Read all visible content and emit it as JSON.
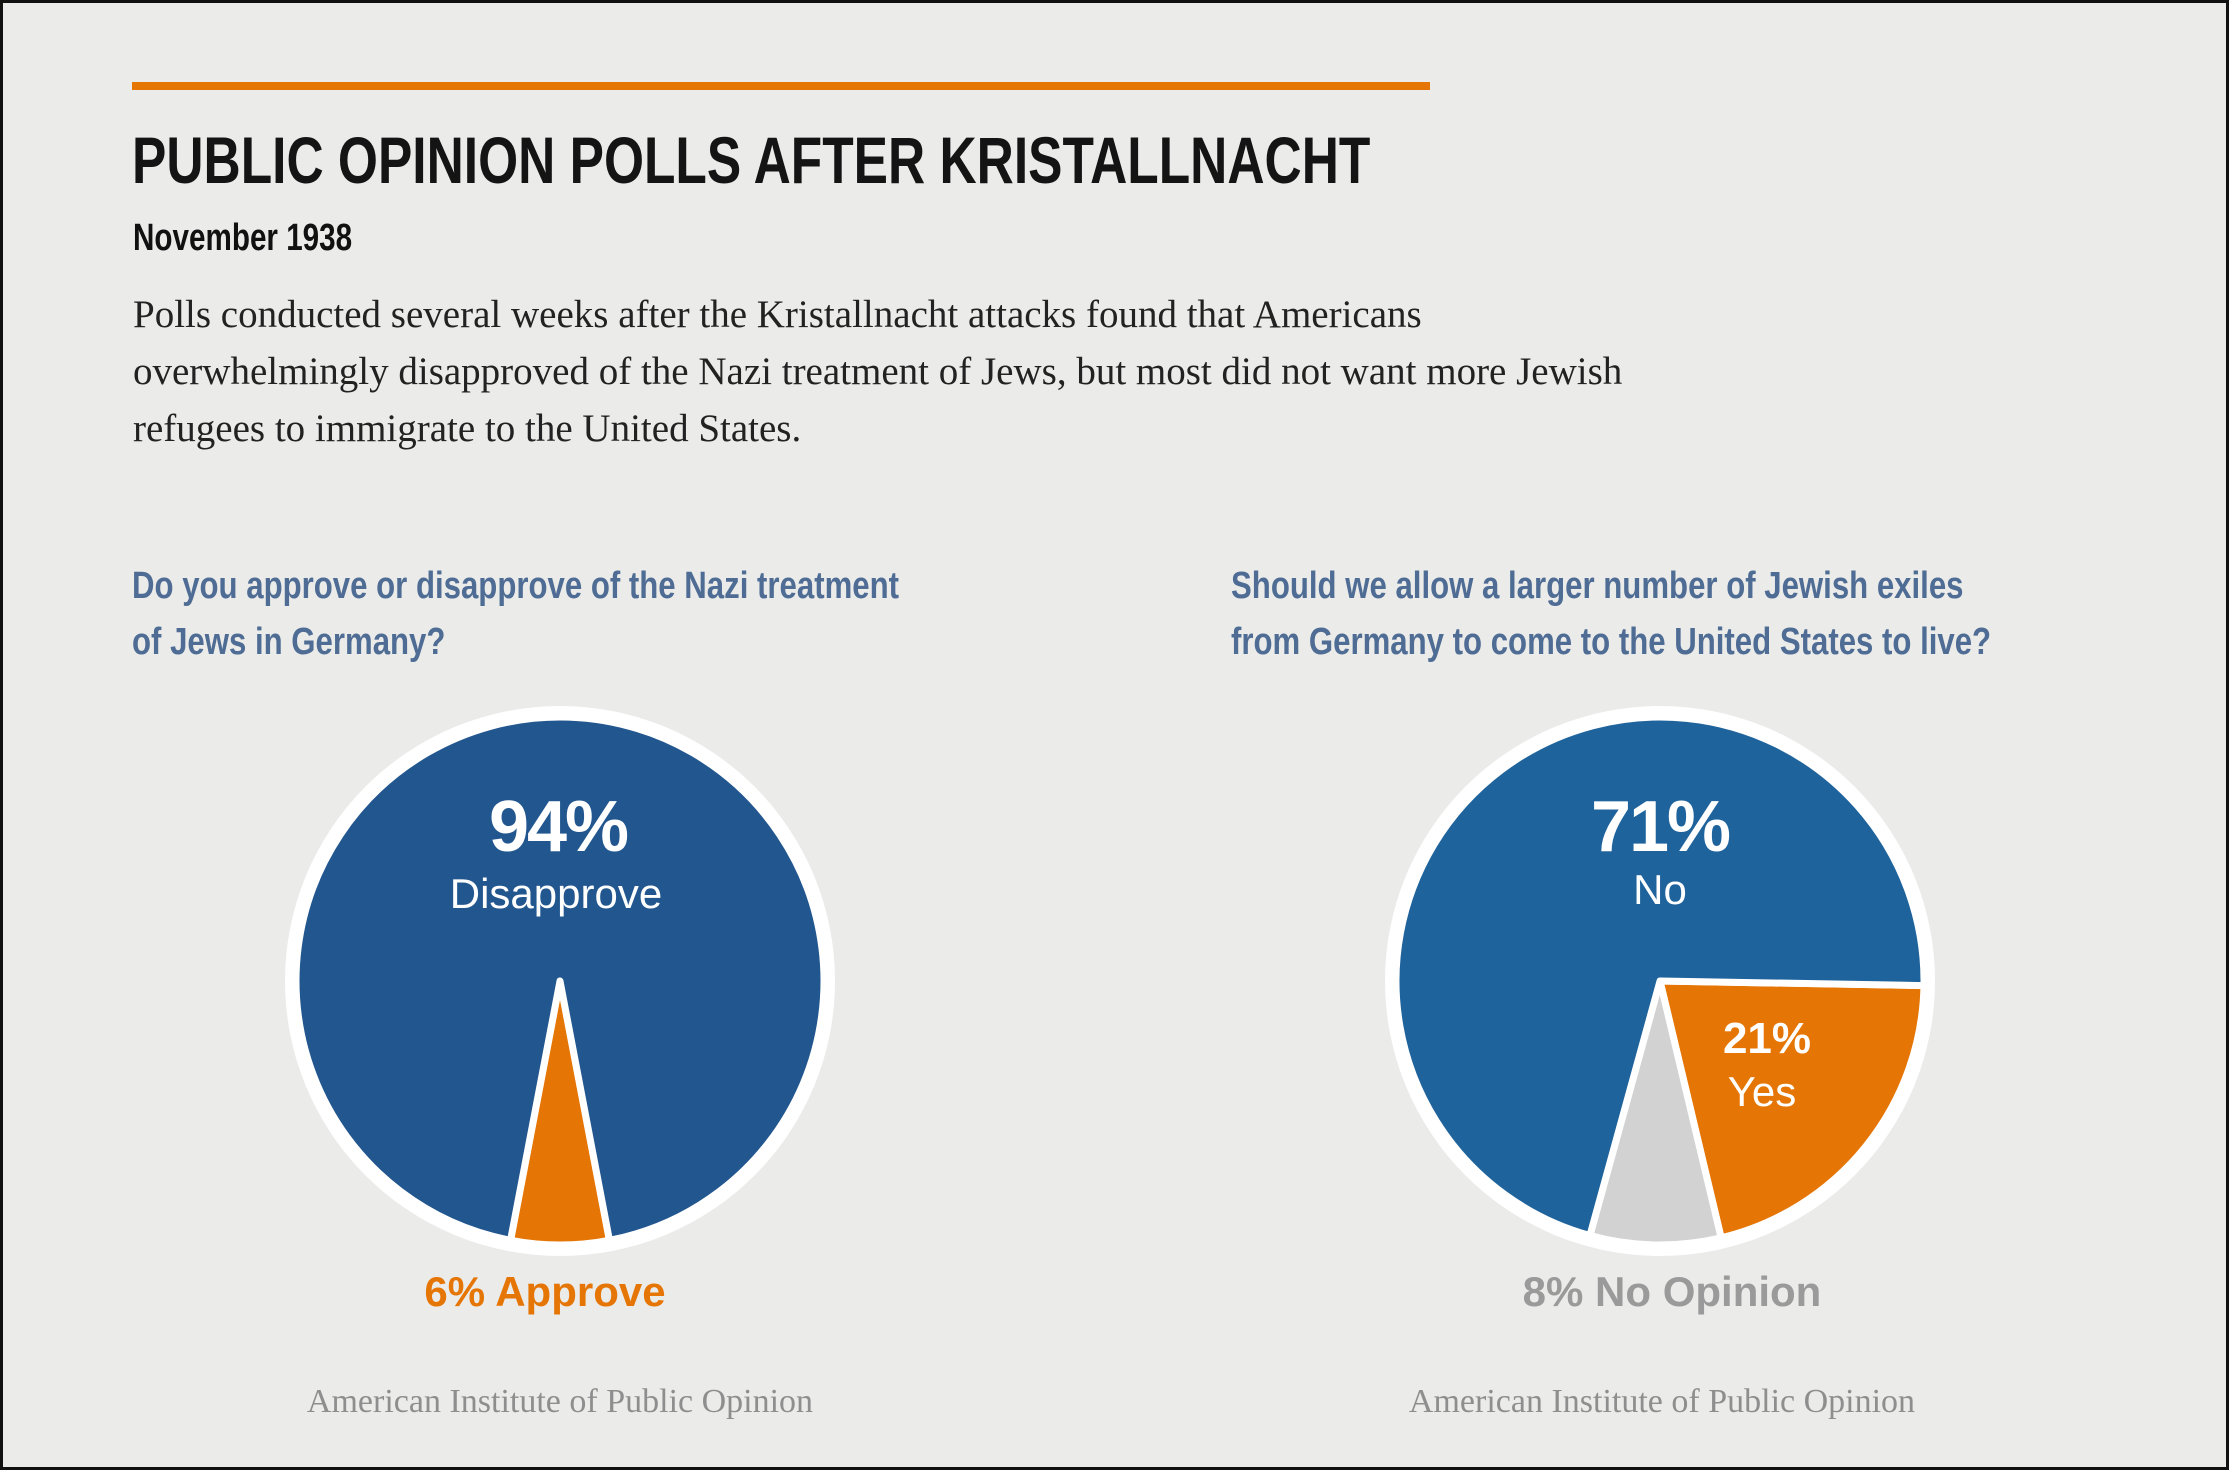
{
  "header": {
    "title": "PUBLIC OPINION POLLS AFTER KRISTALLNACHT",
    "subtitle": "November 1938",
    "description_lines": [
      "Polls conducted several weeks after the Kristallnacht attacks found that Americans",
      "overwhelmingly disapproved of the Nazi treatment of Jews, but most did not want more Jewish",
      "refugees to immigrate to the United States."
    ]
  },
  "colors": {
    "accent": "#e57504",
    "question": "#4e6c94",
    "left_blue": "#22568f",
    "right_blue": "#1f639c",
    "gray": "#d2d2d2",
    "gray_text": "#9a9a9a"
  },
  "chart_data": [
    {
      "type": "pie",
      "title_lines": [
        "Do you approve or disapprove of the Nazi treatment",
        "of Jews in Germany?"
      ],
      "slices": [
        {
          "label": "Disapprove",
          "value": 94,
          "value_label": "94%",
          "color": "#22568f"
        },
        {
          "label": "Approve",
          "value": 6,
          "value_label": "6% Approve",
          "color": "#e57504"
        }
      ],
      "source": "American Institute of Public Opinion"
    },
    {
      "type": "pie",
      "title_lines": [
        "Should we allow a larger number of Jewish exiles",
        "from Germany to come to the United States to live?"
      ],
      "slices": [
        {
          "label": "Yes",
          "value": 21,
          "value_label": "21%",
          "color": "#e57504"
        },
        {
          "label": "No Opinion",
          "value": 8,
          "value_label": "8% No Opinion",
          "color": "#d2d2d2"
        },
        {
          "label": "No",
          "value": 71,
          "value_label": "71%",
          "color": "#1f639c"
        }
      ],
      "source": "American Institute of Public Opinion"
    }
  ]
}
